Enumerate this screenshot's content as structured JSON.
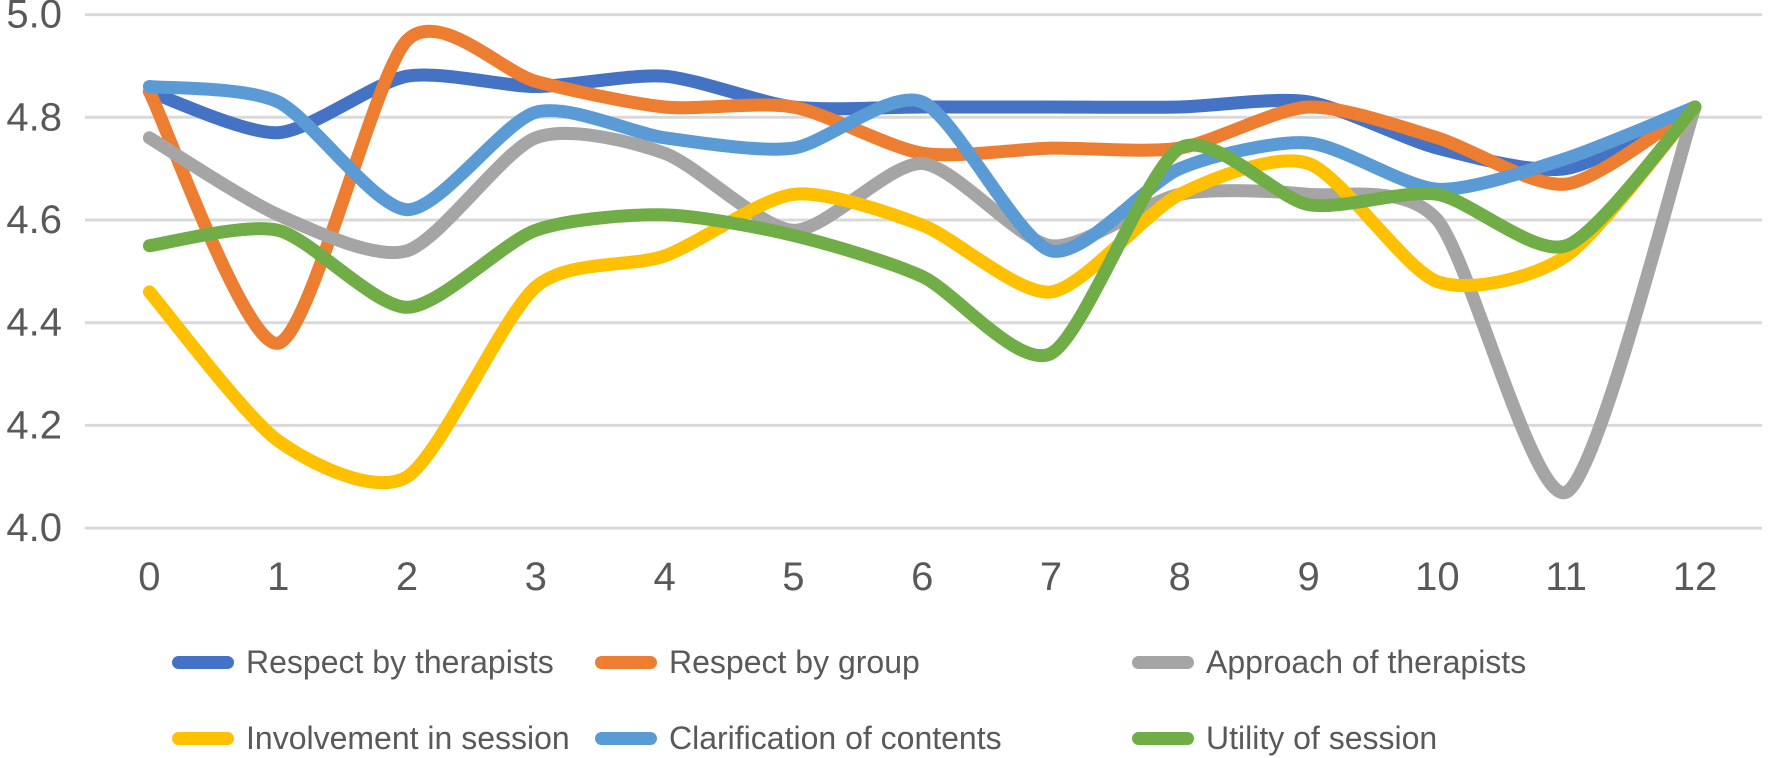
{
  "chart_data": {
    "type": "line",
    "title": "",
    "xlabel": "",
    "ylabel": "",
    "x_categories": [
      "0",
      "1",
      "2",
      "3",
      "4",
      "5",
      "6",
      "7",
      "8",
      "9",
      "10",
      "11",
      "12"
    ],
    "ylim": [
      4.0,
      5.0
    ],
    "yticks": [
      5.0,
      4.8,
      4.6,
      4.4,
      4.2,
      4.0
    ],
    "ytick_labels": [
      "5.0",
      "4.8",
      "4.6",
      "4.4",
      "4.2",
      "4.0"
    ],
    "grid": true,
    "smooth_lines": true,
    "legend_position": "bottom",
    "series": [
      {
        "name": "Respect by therapists",
        "color": "#4472C4",
        "values": [
          4.85,
          4.77,
          4.88,
          4.86,
          4.88,
          4.82,
          4.82,
          4.82,
          4.82,
          4.83,
          4.74,
          4.7,
          4.82
        ]
      },
      {
        "name": "Respect by group",
        "color": "#ED7D31",
        "values": [
          4.85,
          4.36,
          4.95,
          4.87,
          4.82,
          4.82,
          4.73,
          4.74,
          4.74,
          4.82,
          4.76,
          4.67,
          4.82
        ]
      },
      {
        "name": "Approach of therapists",
        "color": "#A5A5A5",
        "values": [
          4.76,
          4.61,
          4.54,
          4.76,
          4.73,
          4.58,
          4.71,
          4.55,
          4.65,
          4.65,
          4.6,
          4.07,
          4.82
        ]
      },
      {
        "name": "Involvement in session",
        "color": "#FFC000",
        "values": [
          4.46,
          4.17,
          4.1,
          4.47,
          4.53,
          4.65,
          4.59,
          4.46,
          4.65,
          4.71,
          4.48,
          4.53,
          4.82
        ]
      },
      {
        "name": "Clarification of contents",
        "color": "#5B9BD5",
        "values": [
          4.86,
          4.83,
          4.62,
          4.81,
          4.76,
          4.74,
          4.83,
          4.54,
          4.7,
          4.75,
          4.66,
          4.72,
          4.82
        ]
      },
      {
        "name": "Utility of session",
        "color": "#70AD47",
        "values": [
          4.55,
          4.58,
          4.43,
          4.58,
          4.61,
          4.57,
          4.49,
          4.34,
          4.74,
          4.63,
          4.65,
          4.55,
          4.82
        ]
      }
    ],
    "legend_rows": [
      [
        0,
        1,
        2
      ],
      [
        3,
        4,
        5
      ]
    ]
  },
  "styles": {
    "background": "#FFFFFF",
    "gridline_color": "#D9D9D9",
    "axis_label_color": "#595959"
  }
}
